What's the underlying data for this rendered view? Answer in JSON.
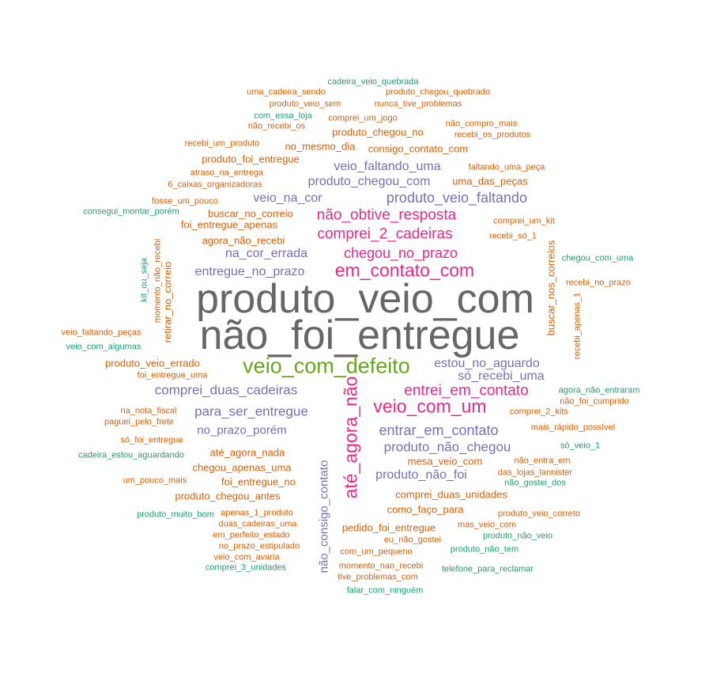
{
  "colors": {
    "gray": "#666666",
    "pink": "#e7298a",
    "green": "#66a61e",
    "purple": "#7570b3",
    "orange": "#d95f02",
    "teal": "#1b9e77"
  },
  "words": [
    {
      "text": "produto_veio_com",
      "color": "gray"
    },
    {
      "text": "não_foi_entregue",
      "color": "gray"
    },
    {
      "text": "veio_com_defeito",
      "color": "green"
    },
    {
      "text": "em_contato_com",
      "color": "pink"
    },
    {
      "text": "até_agora_não",
      "color": "pink"
    },
    {
      "text": "veio_com_um",
      "color": "pink"
    },
    {
      "text": "não_obtive_resposta",
      "color": "pink"
    },
    {
      "text": "comprei_2_cadeiras",
      "color": "pink"
    },
    {
      "text": "chegou_no_prazo",
      "color": "pink"
    },
    {
      "text": "entrei_em_contato",
      "color": "pink"
    },
    {
      "text": "produto_veio_faltando",
      "color": "purple"
    },
    {
      "text": "veio_faltando_uma",
      "color": "purple"
    },
    {
      "text": "produto_chegou_com",
      "color": "purple"
    },
    {
      "text": "veio_na_cor",
      "color": "purple"
    },
    {
      "text": "na_cor_errada",
      "color": "purple"
    },
    {
      "text": "entregue_no_prazo",
      "color": "purple"
    },
    {
      "text": "comprei_duas_cadeiras",
      "color": "purple"
    },
    {
      "text": "para_ser_entregue",
      "color": "purple"
    },
    {
      "text": "no_prazo_porém",
      "color": "purple"
    },
    {
      "text": "estou_no_aguardo",
      "color": "purple"
    },
    {
      "text": "só_recebi_uma",
      "color": "purple"
    },
    {
      "text": "entrar_em_contato",
      "color": "purple"
    },
    {
      "text": "produto_não_chegou",
      "color": "purple"
    },
    {
      "text": "produto_não_foi",
      "color": "purple"
    },
    {
      "text": "não_consigo_contato",
      "color": "purple"
    },
    {
      "text": "cadeira_veio_quebrada",
      "color": "teal"
    },
    {
      "text": "uma_cadeira_sendo",
      "color": "orange"
    },
    {
      "text": "produto_chegou_quebrado",
      "color": "orange"
    },
    {
      "text": "produto_veio_sem",
      "color": "orange"
    },
    {
      "text": "nunca_tive_problemas",
      "color": "orange"
    },
    {
      "text": "com_essa_loja",
      "color": "teal"
    },
    {
      "text": "comprei_um_jogo",
      "color": "orange"
    },
    {
      "text": "não_recebi_os",
      "color": "orange"
    },
    {
      "text": "produto_chegou_no",
      "color": "orange"
    },
    {
      "text": "não_compro_mais",
      "color": "orange"
    },
    {
      "text": "recebi_os_produtos",
      "color": "orange"
    },
    {
      "text": "recebi_um_produto",
      "color": "orange"
    },
    {
      "text": "no_mesmo_dia",
      "color": "orange"
    },
    {
      "text": "consigo_contato_com",
      "color": "orange"
    },
    {
      "text": "produto_foi_entregue",
      "color": "orange"
    },
    {
      "text": "faltando_uma_peça",
      "color": "orange"
    },
    {
      "text": "atraso_na_entrega",
      "color": "orange"
    },
    {
      "text": "uma_das_peças",
      "color": "orange"
    },
    {
      "text": "6_caixas_organizadoras",
      "color": "orange"
    },
    {
      "text": "fosse_um_pouco",
      "color": "orange"
    },
    {
      "text": "consegui_montar_porém",
      "color": "teal"
    },
    {
      "text": "buscar_no_correio",
      "color": "orange"
    },
    {
      "text": "comprei_um_kit",
      "color": "orange"
    },
    {
      "text": "foi_entregue_apenas",
      "color": "orange"
    },
    {
      "text": "recebi_só_1",
      "color": "orange"
    },
    {
      "text": "agora_não_recebi",
      "color": "orange"
    },
    {
      "text": "chegou_com_uma",
      "color": "teal"
    },
    {
      "text": "kit_ou_seja",
      "color": "teal"
    },
    {
      "text": "momento_não_recebi",
      "color": "orange"
    },
    {
      "text": "retirar_no_correio",
      "color": "orange"
    },
    {
      "text": "buscar_nos_correios",
      "color": "orange"
    },
    {
      "text": "recebi_no_prazo",
      "color": "orange"
    },
    {
      "text": "recebi_apenas_1",
      "color": "orange"
    },
    {
      "text": "veio_faltando_peças",
      "color": "orange"
    },
    {
      "text": "veio_com_algumas",
      "color": "teal"
    },
    {
      "text": "produto_veio_errado",
      "color": "orange"
    },
    {
      "text": "foi_entregue_uma",
      "color": "orange"
    },
    {
      "text": "agora_não_entraram",
      "color": "teal"
    },
    {
      "text": "não_foi_cumprido",
      "color": "orange"
    },
    {
      "text": "na_nota_fiscal",
      "color": "orange"
    },
    {
      "text": "comprei_2_kits",
      "color": "orange"
    },
    {
      "text": "paguei_pelo_frete",
      "color": "orange"
    },
    {
      "text": "mais_rápido_possível",
      "color": "orange"
    },
    {
      "text": "só_foi_entregue",
      "color": "orange"
    },
    {
      "text": "só_veio_1",
      "color": "teal"
    },
    {
      "text": "até_agora_nada",
      "color": "orange"
    },
    {
      "text": "cadeira_estou_aguardando",
      "color": "teal"
    },
    {
      "text": "mesa_veio_com",
      "color": "orange"
    },
    {
      "text": "não_entra_em",
      "color": "orange"
    },
    {
      "text": "chegou_apenas_uma",
      "color": "orange"
    },
    {
      "text": "das_lojas_lannister",
      "color": "orange"
    },
    {
      "text": "um_pouco_mais",
      "color": "orange"
    },
    {
      "text": "foi_entregue_no",
      "color": "orange"
    },
    {
      "text": "não_gostei_dos",
      "color": "teal"
    },
    {
      "text": "produto_chegou_antes",
      "color": "orange"
    },
    {
      "text": "comprei_duas_unidades",
      "color": "orange"
    },
    {
      "text": "como_faço_para",
      "color": "orange"
    },
    {
      "text": "produto_muito_bom",
      "color": "teal"
    },
    {
      "text": "apenas_1_produto",
      "color": "orange"
    },
    {
      "text": "produto_veio_correto",
      "color": "orange"
    },
    {
      "text": "duas_cadeiras_uma",
      "color": "orange"
    },
    {
      "text": "pedido_foi_entregue",
      "color": "orange"
    },
    {
      "text": "mas_veio_com",
      "color": "orange"
    },
    {
      "text": "em_perfeito_estado",
      "color": "orange"
    },
    {
      "text": "eu_não_gostei",
      "color": "orange"
    },
    {
      "text": "produto_não_veio",
      "color": "teal"
    },
    {
      "text": "no_prazo_estipulado",
      "color": "orange"
    },
    {
      "text": "com_um_pequeno",
      "color": "orange"
    },
    {
      "text": "produto_não_tem",
      "color": "teal"
    },
    {
      "text": "veio_com_avaria",
      "color": "orange"
    },
    {
      "text": "comprei_3_unidades",
      "color": "teal"
    },
    {
      "text": "momento_nao_recebi",
      "color": "orange"
    },
    {
      "text": "telefone_para_reclamar",
      "color": "teal"
    },
    {
      "text": "tive_problemas_com",
      "color": "orange"
    },
    {
      "text": "falar_com_ninguém",
      "color": "teal"
    }
  ]
}
